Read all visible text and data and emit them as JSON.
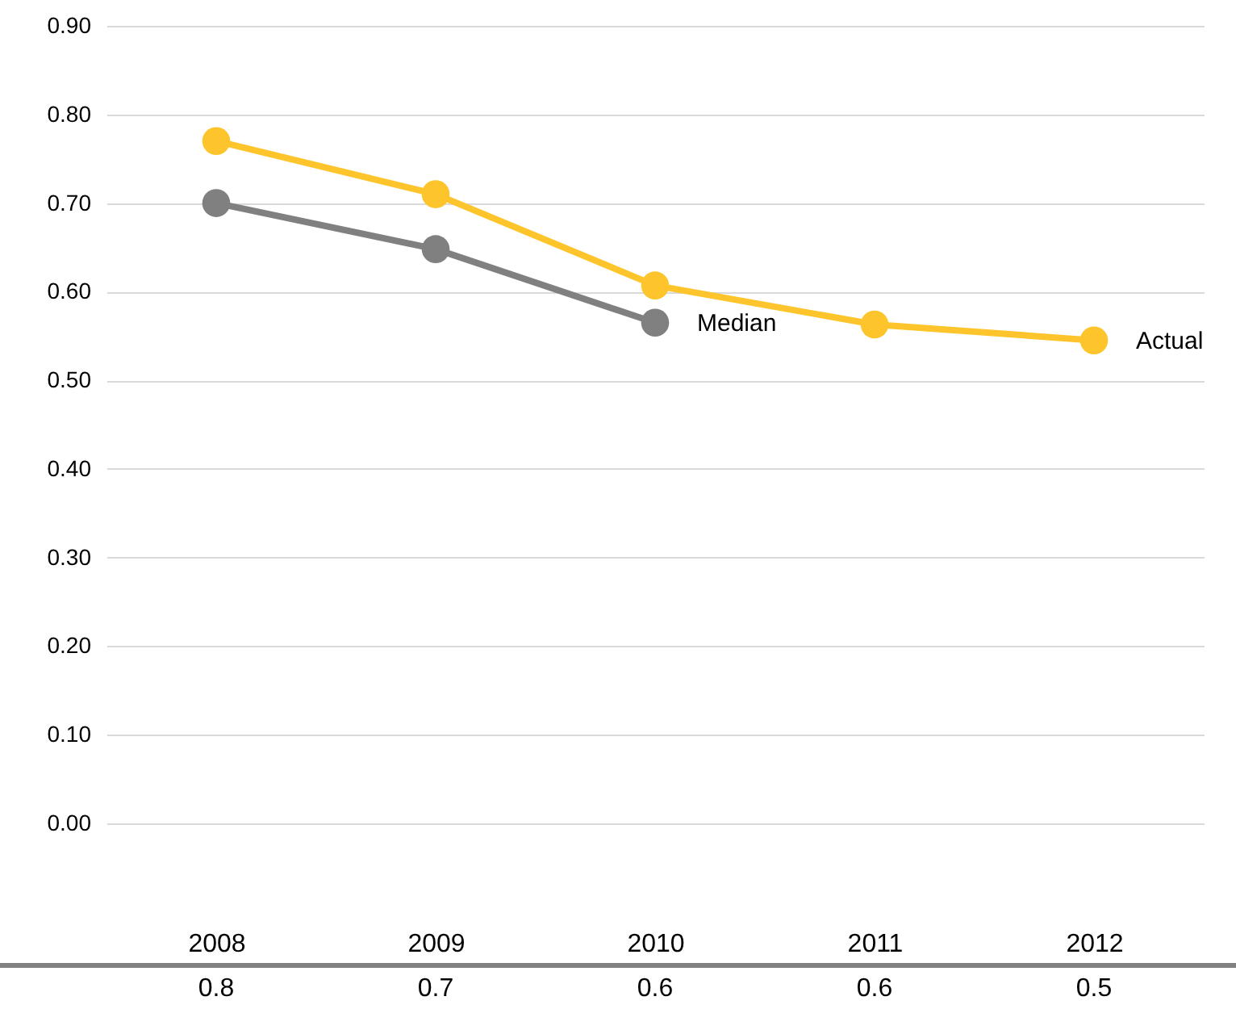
{
  "chart_data": {
    "type": "line",
    "categories": [
      "2008",
      "2009",
      "2010",
      "2011",
      "2012"
    ],
    "series": [
      {
        "name": "Actual",
        "color": "#fdc52b",
        "values": [
          0.77,
          0.71,
          0.607,
          0.563,
          0.545
        ],
        "value_labels": [
          "0.8",
          "0.7",
          "0.6",
          "0.6",
          "0.5"
        ]
      },
      {
        "name": "Median",
        "color": "#808080",
        "values": [
          0.7,
          0.648,
          0.565,
          null,
          null
        ]
      }
    ],
    "ylim": [
      0,
      0.9
    ],
    "yticks": [
      {
        "value": 0,
        "label": "0.00"
      },
      {
        "value": 0.1,
        "label": "0.10"
      },
      {
        "value": 0.2,
        "label": "0.20"
      },
      {
        "value": 0.3,
        "label": "0.30"
      },
      {
        "value": 0.4,
        "label": "0.40"
      },
      {
        "value": 0.5,
        "label": "0.50"
      },
      {
        "value": 0.6,
        "label": "0.60"
      },
      {
        "value": 0.7,
        "label": "0.70"
      },
      {
        "value": 0.8,
        "label": "0.80"
      },
      {
        "value": 0.9,
        "label": "0.90"
      }
    ],
    "grid": "y",
    "marker": "circle",
    "line_style": "solid"
  }
}
